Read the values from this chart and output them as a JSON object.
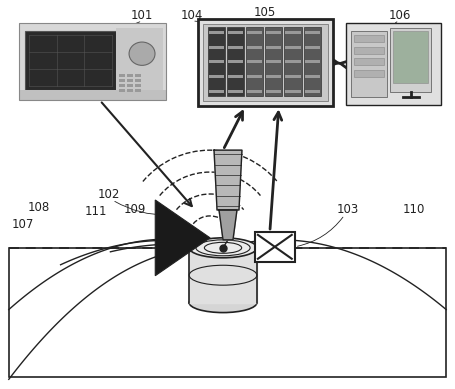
{
  "bg_color": "#ffffff",
  "dark": "#222222",
  "gray": "#888888",
  "lgray": "#cccccc",
  "vlgray": "#e8e8e8",
  "fig_width": 4.55,
  "fig_height": 3.89,
  "dpi": 100
}
